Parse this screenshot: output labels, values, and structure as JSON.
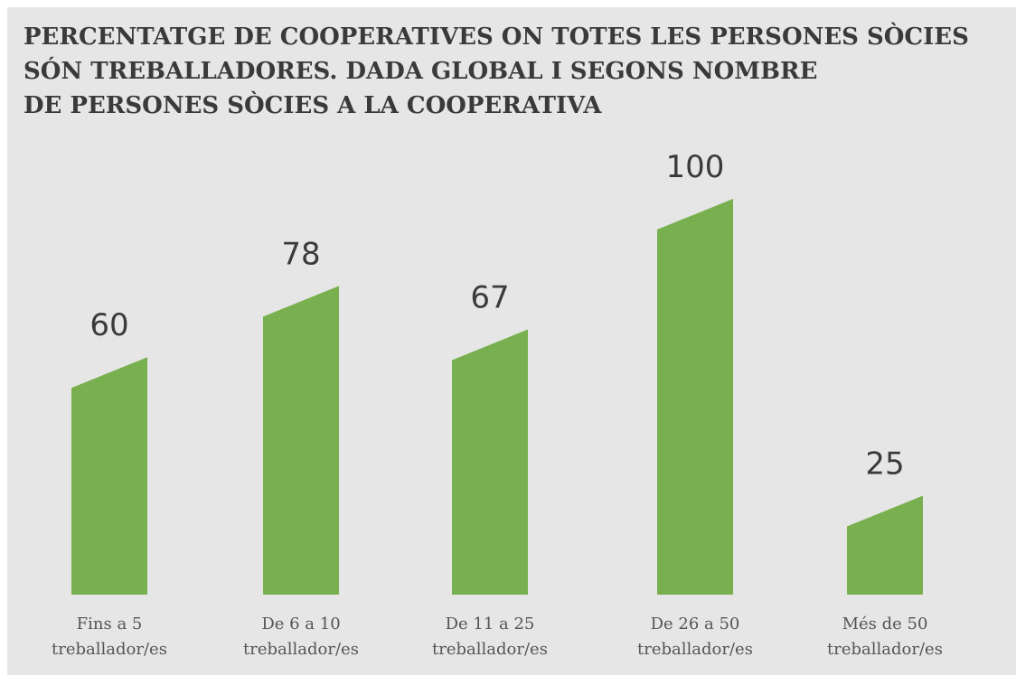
{
  "chart_data": {
    "type": "bar",
    "title_lines": [
      "PERCENTATGE DE COOPERATIVES ON TOTES LES PERSONES SÒCIES",
      "SÓN TREBALLADORES. DADA GLOBAL I SEGONS NOMBRE",
      "DE PERSONES SÒCIES A LA COOPERATIVA"
    ],
    "categories": [
      [
        "Fins a 5",
        "treballador/es"
      ],
      [
        "De 6 a 10",
        "treballador/es"
      ],
      [
        "De 11 a 25",
        "treballador/es"
      ],
      [
        "De 26 a 50",
        "treballador/es"
      ],
      [
        "Més de 50",
        "treballador/es"
      ]
    ],
    "values": [
      60,
      78,
      67,
      100,
      25
    ],
    "value_labels": [
      "60",
      "78",
      "67",
      "100",
      "25"
    ],
    "ylim": [
      0,
      100
    ],
    "bar_color": "#79b04f",
    "background": "#e6e6e6",
    "grid": false,
    "legend": "none"
  }
}
